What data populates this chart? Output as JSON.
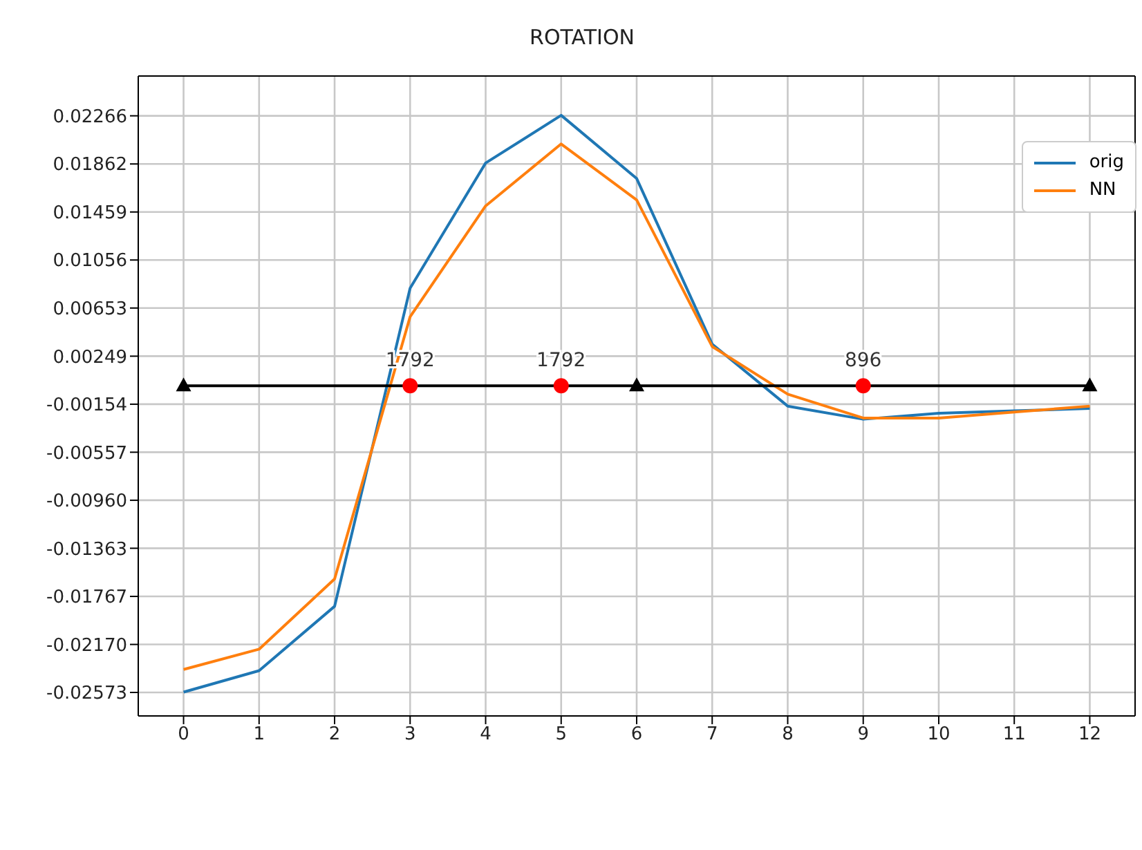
{
  "chart_data": {
    "type": "line",
    "title": "ROTATION",
    "x": [
      0,
      1,
      2,
      3,
      4,
      5,
      6,
      7,
      8,
      9,
      10,
      11,
      12
    ],
    "series": [
      {
        "name": "orig",
        "color": "#1f77b4",
        "marker": "none",
        "values": [
          -0.0257,
          -0.0239,
          -0.0185,
          0.0082,
          0.0187,
          0.0227,
          0.0174,
          0.0035,
          -0.0017,
          -0.0028,
          -0.0023,
          -0.0021,
          -0.0019
        ]
      },
      {
        "name": "NN",
        "color": "#ff7f0e",
        "marker": "none",
        "values": [
          -0.0238,
          -0.0221,
          -0.0162,
          0.0058,
          0.0151,
          0.0203,
          0.0156,
          0.0033,
          -0.0007,
          -0.0027,
          -0.0027,
          -0.0022,
          -0.0017
        ]
      },
      {
        "type": "line",
        "color": "#000000",
        "marker": "triangle",
        "x": [
          0,
          6,
          12
        ],
        "values": [
          0,
          0,
          0
        ]
      },
      {
        "type": "scatter",
        "color": "#ff0000",
        "marker": "circle",
        "x": [
          3,
          5,
          9
        ],
        "values": [
          0,
          0,
          0
        ]
      }
    ],
    "annotations": [
      {
        "text": "1792",
        "x": 3,
        "y": 0
      },
      {
        "text": "1792",
        "x": 5,
        "y": 0
      },
      {
        "text": "896",
        "x": 9,
        "y": 0
      }
    ],
    "xlim": [
      -0.6,
      12.6
    ],
    "xticks": [
      0,
      1,
      2,
      3,
      4,
      5,
      6,
      7,
      8,
      9,
      10,
      11,
      12
    ],
    "ylim": [
      -0.0277,
      0.026
    ],
    "yticks": [
      -0.02573,
      {
        "value": -0.0217,
        "label": "-0.02170"
      },
      -0.01767,
      -0.01363,
      {
        "value": -0.0096,
        "label": "-0.00960"
      },
      -0.00557,
      -0.00154,
      0.00249,
      0.00653,
      0.01056,
      0.01459,
      0.01862,
      0.02266
    ],
    "grid": true,
    "legend": "top right"
  }
}
